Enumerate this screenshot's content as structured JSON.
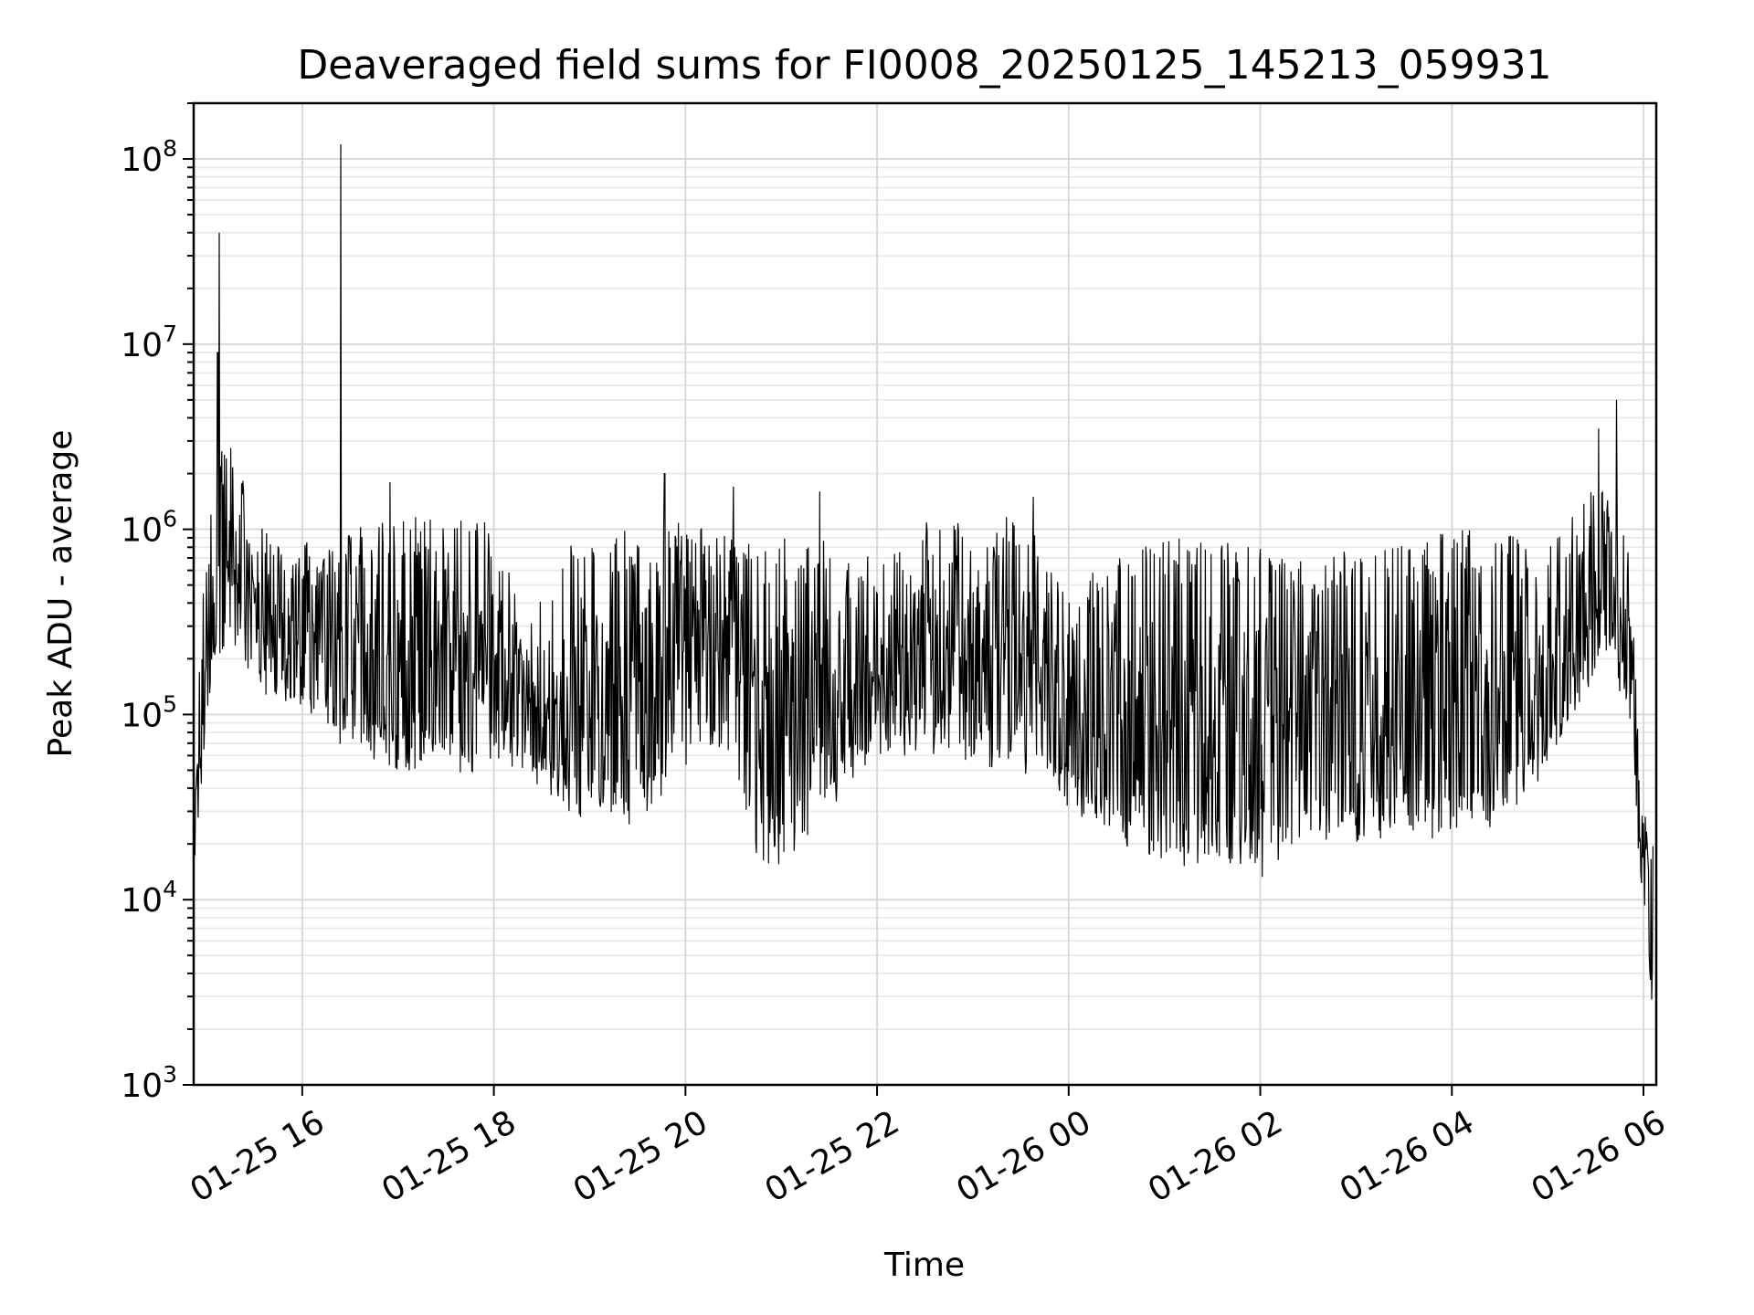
{
  "chart_data": {
    "type": "line",
    "title": "Deaveraged field sums for FI0008_20250125_145213_059931",
    "xlabel": "Time",
    "ylabel": "Peak ADU - average",
    "yscale": "log",
    "ylim": [
      1000,
      200000000
    ],
    "xlim": [
      "2025-01-25 14:52",
      "2025-01-26 06:08"
    ],
    "grid": true,
    "x_ticks": [
      {
        "label": "01-25 16",
        "value": "2025-01-25 16:00"
      },
      {
        "label": "01-25 18",
        "value": "2025-01-25 18:00"
      },
      {
        "label": "01-25 20",
        "value": "2025-01-25 20:00"
      },
      {
        "label": "01-25 22",
        "value": "2025-01-25 22:00"
      },
      {
        "label": "01-26 00",
        "value": "2025-01-26 00:00"
      },
      {
        "label": "01-26 02",
        "value": "2025-01-26 02:00"
      },
      {
        "label": "01-26 04",
        "value": "2025-01-26 04:00"
      },
      {
        "label": "01-26 06",
        "value": "2025-01-26 06:00"
      }
    ],
    "y_ticks": [
      {
        "base": "10",
        "exp": "3",
        "value": 1000
      },
      {
        "base": "10",
        "exp": "4",
        "value": 10000
      },
      {
        "base": "10",
        "exp": "5",
        "value": 100000
      },
      {
        "base": "10",
        "exp": "6",
        "value": 1000000
      },
      {
        "base": "10",
        "exp": "7",
        "value": 10000000
      },
      {
        "base": "10",
        "exp": "8",
        "value": 100000000
      }
    ],
    "series": [
      {
        "color": "#000000",
        "envelope": [
          {
            "t": "2025-01-25 14:52",
            "low": 12000,
            "high": 30000
          },
          {
            "t": "2025-01-25 14:57",
            "low": 40000,
            "high": 400000
          },
          {
            "t": "2025-01-25 15:05",
            "low": 200000,
            "high": 2500000
          },
          {
            "t": "2025-01-25 15:15",
            "low": 200000,
            "high": 3000000
          },
          {
            "t": "2025-01-25 15:30",
            "low": 150000,
            "high": 1500000
          },
          {
            "t": "2025-01-25 15:45",
            "low": 100000,
            "high": 900000
          },
          {
            "t": "2025-01-25 16:00",
            "low": 100000,
            "high": 1000000
          },
          {
            "t": "2025-01-25 16:30",
            "low": 60000,
            "high": 1000000
          },
          {
            "t": "2025-01-25 17:00",
            "low": 50000,
            "high": 1200000
          },
          {
            "t": "2025-01-25 17:30",
            "low": 45000,
            "high": 1200000
          },
          {
            "t": "2025-01-25 18:00",
            "low": 40000,
            "high": 1100000
          },
          {
            "t": "2025-01-25 18:20",
            "low": 50000,
            "high": 300000
          },
          {
            "t": "2025-01-25 18:40",
            "low": 30000,
            "high": 800000
          },
          {
            "t": "2025-01-25 19:00",
            "low": 25000,
            "high": 1000000
          },
          {
            "t": "2025-01-25 19:30",
            "low": 25000,
            "high": 1000000
          },
          {
            "t": "2025-01-25 20:00",
            "low": 50000,
            "high": 1100000
          },
          {
            "t": "2025-01-25 20:30",
            "low": 60000,
            "high": 1000000
          },
          {
            "t": "2025-01-25 20:40",
            "low": 15000,
            "high": 900000
          },
          {
            "t": "2025-01-25 21:00",
            "low": 15000,
            "high": 900000
          },
          {
            "t": "2025-01-25 21:30",
            "low": 30000,
            "high": 900000
          },
          {
            "t": "2025-01-25 22:00",
            "low": 60000,
            "high": 800000
          },
          {
            "t": "2025-01-25 22:30",
            "low": 60000,
            "high": 1100000
          },
          {
            "t": "2025-01-25 23:00",
            "low": 50000,
            "high": 1200000
          },
          {
            "t": "2025-01-25 23:30",
            "low": 50000,
            "high": 1200000
          },
          {
            "t": "2025-01-26 00:00",
            "low": 30000,
            "high": 500000
          },
          {
            "t": "2025-01-26 00:30",
            "low": 20000,
            "high": 700000
          },
          {
            "t": "2025-01-26 01:00",
            "low": 15000,
            "high": 900000
          },
          {
            "t": "2025-01-26 01:30",
            "low": 14000,
            "high": 900000
          },
          {
            "t": "2025-01-26 02:00",
            "low": 13000,
            "high": 800000
          },
          {
            "t": "2025-01-26 02:30",
            "low": 20000,
            "high": 700000
          },
          {
            "t": "2025-01-26 03:00",
            "low": 20000,
            "high": 800000
          },
          {
            "t": "2025-01-26 03:30",
            "low": 20000,
            "high": 900000
          },
          {
            "t": "2025-01-26 04:00",
            "low": 20000,
            "high": 1000000
          },
          {
            "t": "2025-01-26 04:30",
            "low": 25000,
            "high": 1000000
          },
          {
            "t": "2025-01-26 05:00",
            "low": 50000,
            "high": 800000
          },
          {
            "t": "2025-01-26 05:20",
            "low": 100000,
            "high": 1500000
          },
          {
            "t": "2025-01-26 05:35",
            "low": 200000,
            "high": 2500000
          },
          {
            "t": "2025-01-26 05:50",
            "low": 100000,
            "high": 900000
          },
          {
            "t": "2025-01-26 06:00",
            "low": 8000,
            "high": 40000
          },
          {
            "t": "2025-01-26 06:06",
            "low": 2000,
            "high": 20000
          }
        ],
        "spikes": [
          {
            "t": "2025-01-25 15:08",
            "value": 40000000
          },
          {
            "t": "2025-01-25 15:07",
            "value": 9000000
          },
          {
            "t": "2025-01-25 16:24",
            "value": 120000000
          },
          {
            "t": "2025-01-25 19:47",
            "value": 2000000
          },
          {
            "t": "2025-01-25 16:55",
            "value": 1800000
          },
          {
            "t": "2025-01-25 20:30",
            "value": 1700000
          },
          {
            "t": "2025-01-25 21:24",
            "value": 1600000
          },
          {
            "t": "2025-01-25 23:38",
            "value": 1500000
          },
          {
            "t": "2025-01-26 05:43",
            "value": 5000000
          },
          {
            "t": "2025-01-26 05:32",
            "value": 3500000
          }
        ]
      }
    ]
  }
}
